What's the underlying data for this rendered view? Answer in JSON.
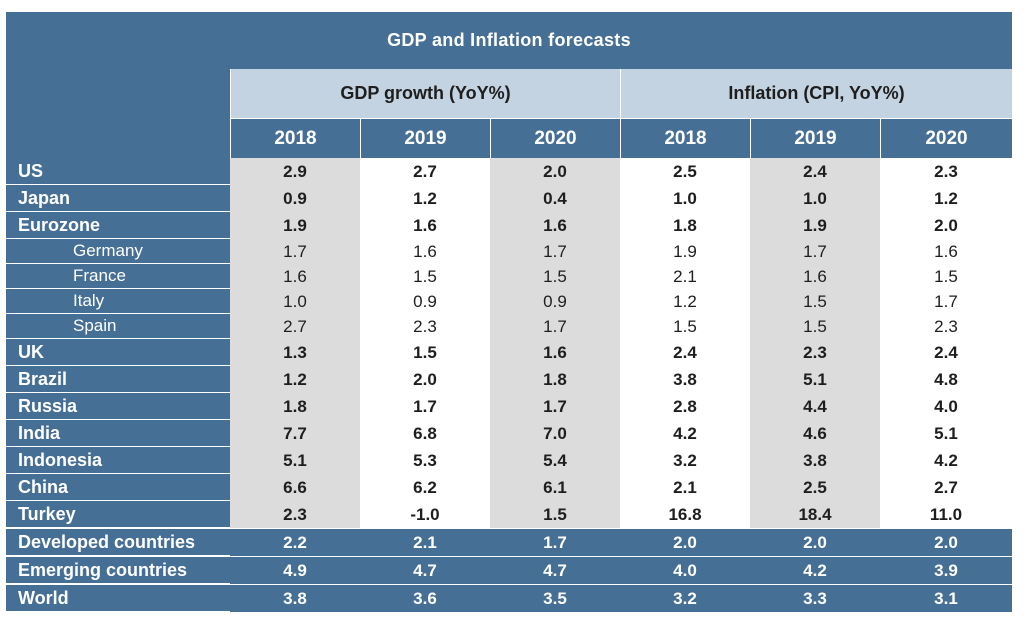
{
  "title": "GDP and Inflation forecasts",
  "groups": [
    "GDP growth (YoY%)",
    "Inflation (CPI, YoY%)"
  ],
  "years": [
    "2018",
    "2019",
    "2020",
    "2018",
    "2019",
    "2020"
  ],
  "rows": [
    {
      "label": "US",
      "sub": false,
      "values": [
        "2.9",
        "2.7",
        "2.0",
        "2.5",
        "2.4",
        "2.3"
      ]
    },
    {
      "label": "Japan",
      "sub": false,
      "values": [
        "0.9",
        "1.2",
        "0.4",
        "1.0",
        "1.0",
        "1.2"
      ]
    },
    {
      "label": "Eurozone",
      "sub": false,
      "values": [
        "1.9",
        "1.6",
        "1.6",
        "1.8",
        "1.9",
        "2.0"
      ]
    },
    {
      "label": "Germany",
      "sub": true,
      "values": [
        "1.7",
        "1.6",
        "1.7",
        "1.9",
        "1.7",
        "1.6"
      ]
    },
    {
      "label": "France",
      "sub": true,
      "values": [
        "1.6",
        "1.5",
        "1.5",
        "2.1",
        "1.6",
        "1.5"
      ]
    },
    {
      "label": "Italy",
      "sub": true,
      "values": [
        "1.0",
        "0.9",
        "0.9",
        "1.2",
        "1.5",
        "1.7"
      ]
    },
    {
      "label": "Spain",
      "sub": true,
      "values": [
        "2.7",
        "2.3",
        "1.7",
        "1.5",
        "1.5",
        "2.3"
      ]
    },
    {
      "label": "UK",
      "sub": false,
      "values": [
        "1.3",
        "1.5",
        "1.6",
        "2.4",
        "2.3",
        "2.4"
      ]
    },
    {
      "label": "Brazil",
      "sub": false,
      "values": [
        "1.2",
        "2.0",
        "1.8",
        "3.8",
        "5.1",
        "4.8"
      ]
    },
    {
      "label": "Russia",
      "sub": false,
      "values": [
        "1.8",
        "1.7",
        "1.7",
        "2.8",
        "4.4",
        "4.0"
      ]
    },
    {
      "label": "India",
      "sub": false,
      "values": [
        "7.7",
        "6.8",
        "7.0",
        "4.2",
        "4.6",
        "5.1"
      ]
    },
    {
      "label": "Indonesia",
      "sub": false,
      "values": [
        "5.1",
        "5.3",
        "5.4",
        "3.2",
        "3.8",
        "4.2"
      ]
    },
    {
      "label": "China",
      "sub": false,
      "values": [
        "6.6",
        "6.2",
        "6.1",
        "2.1",
        "2.5",
        "2.7"
      ]
    },
    {
      "label": "Turkey",
      "sub": false,
      "values": [
        "2.3",
        "-1.0",
        "1.5",
        "16.8",
        "18.4",
        "11.0"
      ]
    }
  ],
  "aggregates": [
    {
      "label": "Developed countries",
      "values": [
        "2.2",
        "2.1",
        "1.7",
        "2.0",
        "2.0",
        "2.0"
      ]
    },
    {
      "label": "Emerging countries",
      "values": [
        "4.9",
        "4.7",
        "4.7",
        "4.0",
        "4.2",
        "3.9"
      ]
    },
    {
      "label": "World",
      "values": [
        "3.8",
        "3.6",
        "3.5",
        "3.2",
        "3.3",
        "3.1"
      ]
    }
  ],
  "colors": {
    "header_blue": "#466f95",
    "group_header": "#c4d3e1",
    "shaded_column": "#dcdcdc"
  }
}
